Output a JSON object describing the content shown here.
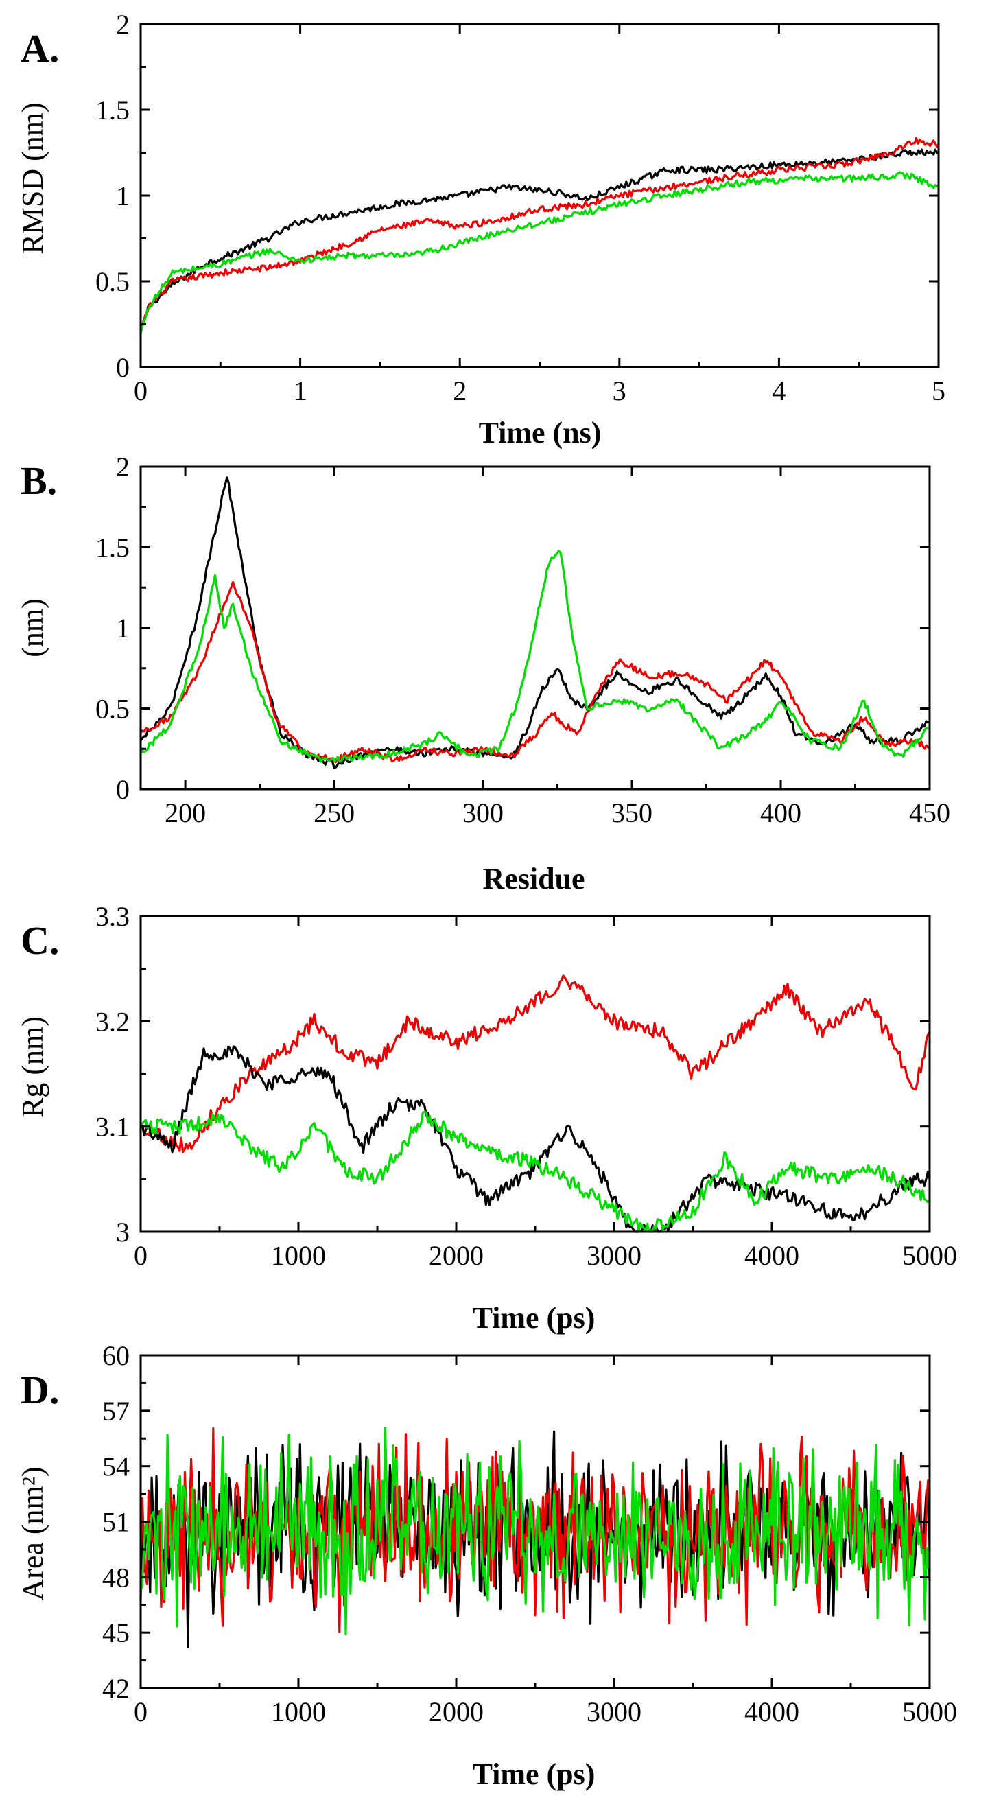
{
  "colors": {
    "black": "#000000",
    "red": "#ee0000",
    "green": "#00dd00"
  },
  "chart_data": [
    {
      "type": "line",
      "panel_label": "A.",
      "xlabel": "Time (ns)",
      "ylabel": "RMSD (nm)",
      "xlim": [
        0,
        5
      ],
      "ylim": [
        0,
        2
      ],
      "xticks": [
        0,
        1,
        2,
        3,
        4,
        5
      ],
      "yticks": [
        0,
        0.5,
        1,
        1.5,
        2
      ],
      "xtick_labels": [
        "0",
        "1",
        "2",
        "3",
        "4",
        "5"
      ],
      "ytick_labels": [
        "0",
        "0.5",
        "1",
        "1.5",
        "2"
      ],
      "grid": false,
      "noise": 0.018,
      "series": [
        {
          "color": "black",
          "x": [
            0,
            0.05,
            0.2,
            0.4,
            0.6,
            0.8,
            1.0,
            1.3,
            1.6,
            2.0,
            2.3,
            2.6,
            2.8,
            3.0,
            3.3,
            3.6,
            4.0,
            4.4,
            4.8,
            5.0
          ],
          "y": [
            0.2,
            0.35,
            0.48,
            0.6,
            0.67,
            0.75,
            0.85,
            0.9,
            0.95,
            1.0,
            1.05,
            1.02,
            0.98,
            1.05,
            1.15,
            1.15,
            1.18,
            1.2,
            1.25,
            1.25
          ]
        },
        {
          "color": "red",
          "x": [
            0,
            0.05,
            0.2,
            0.5,
            0.8,
            1.0,
            1.3,
            1.5,
            1.8,
            2.0,
            2.2,
            2.5,
            2.8,
            3.0,
            3.5,
            4.0,
            4.4,
            4.7,
            4.85,
            5.0
          ],
          "y": [
            0.2,
            0.35,
            0.5,
            0.55,
            0.58,
            0.62,
            0.72,
            0.8,
            0.85,
            0.82,
            0.85,
            0.92,
            0.95,
            1.0,
            1.08,
            1.15,
            1.18,
            1.25,
            1.32,
            1.3
          ]
        },
        {
          "color": "green",
          "x": [
            0,
            0.05,
            0.2,
            0.5,
            0.8,
            1.0,
            1.3,
            1.7,
            2.0,
            2.3,
            2.7,
            3.0,
            3.4,
            3.8,
            4.2,
            4.5,
            4.8,
            5.0
          ],
          "y": [
            0.2,
            0.35,
            0.55,
            0.6,
            0.68,
            0.62,
            0.65,
            0.65,
            0.72,
            0.8,
            0.88,
            0.95,
            1.02,
            1.08,
            1.1,
            1.1,
            1.12,
            1.05
          ]
        }
      ]
    },
    {
      "type": "line",
      "panel_label": "B.",
      "xlabel": "Residue",
      "ylabel": "(nm)",
      "xlim": [
        185,
        450
      ],
      "ylim": [
        0,
        2
      ],
      "xticks": [
        200,
        250,
        300,
        350,
        400,
        450
      ],
      "yticks": [
        0,
        0.5,
        1,
        1.5,
        2
      ],
      "xtick_labels": [
        "200",
        "250",
        "300",
        "350",
        "400",
        "450"
      ],
      "ytick_labels": [
        "0",
        "0.5",
        "1",
        "1.5",
        "2"
      ],
      "grid": false,
      "noise": 0.02,
      "series": [
        {
          "color": "black",
          "x": [
            185,
            195,
            203,
            210,
            214,
            218,
            225,
            232,
            240,
            250,
            260,
            270,
            280,
            290,
            300,
            310,
            315,
            320,
            325,
            330,
            335,
            345,
            355,
            365,
            370,
            380,
            385,
            395,
            400,
            405,
            415,
            425,
            430,
            440,
            450
          ],
          "y": [
            0.3,
            0.5,
            1.0,
            1.6,
            1.95,
            1.5,
            0.8,
            0.35,
            0.22,
            0.15,
            0.22,
            0.25,
            0.22,
            0.25,
            0.22,
            0.2,
            0.38,
            0.62,
            0.75,
            0.55,
            0.5,
            0.72,
            0.6,
            0.68,
            0.6,
            0.45,
            0.52,
            0.7,
            0.58,
            0.35,
            0.28,
            0.4,
            0.3,
            0.3,
            0.42
          ]
        },
        {
          "color": "red",
          "x": [
            185,
            195,
            205,
            212,
            216,
            222,
            230,
            240,
            250,
            260,
            270,
            280,
            290,
            300,
            310,
            318,
            323,
            327,
            332,
            338,
            346,
            355,
            368,
            375,
            382,
            390,
            395,
            400,
            410,
            420,
            428,
            435,
            445,
            450
          ],
          "y": [
            0.35,
            0.45,
            0.75,
            1.1,
            1.28,
            1.0,
            0.45,
            0.22,
            0.18,
            0.25,
            0.18,
            0.24,
            0.22,
            0.25,
            0.2,
            0.35,
            0.48,
            0.4,
            0.35,
            0.6,
            0.8,
            0.7,
            0.72,
            0.65,
            0.55,
            0.7,
            0.8,
            0.7,
            0.35,
            0.3,
            0.45,
            0.28,
            0.3,
            0.25
          ]
        },
        {
          "color": "green",
          "x": [
            185,
            195,
            205,
            210,
            213,
            216,
            222,
            232,
            245,
            260,
            270,
            280,
            286,
            295,
            305,
            312,
            318,
            322,
            326,
            330,
            335,
            345,
            355,
            365,
            370,
            380,
            385,
            395,
            400,
            410,
            420,
            428,
            433,
            440,
            450
          ],
          "y": [
            0.22,
            0.4,
            0.9,
            1.32,
            1.0,
            1.15,
            0.75,
            0.3,
            0.18,
            0.2,
            0.22,
            0.28,
            0.35,
            0.2,
            0.25,
            0.55,
            1.05,
            1.4,
            1.47,
            0.95,
            0.5,
            0.55,
            0.5,
            0.55,
            0.45,
            0.25,
            0.3,
            0.42,
            0.55,
            0.3,
            0.25,
            0.55,
            0.3,
            0.2,
            0.38
          ]
        }
      ]
    },
    {
      "type": "line",
      "panel_label": "C.",
      "xlabel": "Time (ps)",
      "ylabel": "Rg (nm)",
      "xlim": [
        0,
        5000
      ],
      "ylim": [
        3,
        3.3
      ],
      "xticks": [
        0,
        1000,
        2000,
        3000,
        4000,
        5000
      ],
      "yticks": [
        3,
        3.1,
        3.2,
        3.3
      ],
      "xtick_labels": [
        "0",
        "1000",
        "2000",
        "3000",
        "4000",
        "5000"
      ],
      "ytick_labels": [
        "3",
        "3.1",
        "3.2",
        "3.3"
      ],
      "grid": false,
      "noise": 0.007,
      "series": [
        {
          "color": "red",
          "x": [
            0,
            300,
            500,
            700,
            900,
            1100,
            1300,
            1500,
            1700,
            2000,
            2300,
            2700,
            3000,
            3300,
            3500,
            3800,
            4100,
            4300,
            4600,
            4800,
            4900,
            5000
          ],
          "y": [
            3.1,
            3.08,
            3.12,
            3.15,
            3.17,
            3.2,
            3.17,
            3.16,
            3.2,
            3.18,
            3.2,
            3.24,
            3.2,
            3.19,
            3.15,
            3.19,
            3.23,
            3.19,
            3.22,
            3.17,
            3.13,
            3.19
          ]
        },
        {
          "color": "black",
          "x": [
            0,
            200,
            400,
            600,
            800,
            1000,
            1200,
            1400,
            1600,
            1800,
            2000,
            2200,
            2500,
            2700,
            2900,
            3100,
            3300,
            3600,
            3900,
            4200,
            4500,
            4700,
            4900,
            5000
          ],
          "y": [
            3.1,
            3.08,
            3.17,
            3.17,
            3.14,
            3.15,
            3.15,
            3.08,
            3.12,
            3.12,
            3.06,
            3.03,
            3.06,
            3.1,
            3.06,
            3.0,
            3.0,
            3.05,
            3.04,
            3.03,
            3.01,
            3.03,
            3.05,
            3.05
          ]
        },
        {
          "color": "green",
          "x": [
            0,
            300,
            500,
            700,
            900,
            1100,
            1300,
            1500,
            1800,
            2100,
            2400,
            2700,
            3000,
            3200,
            3500,
            3700,
            3900,
            4100,
            4400,
            4600,
            4800,
            5000
          ],
          "y": [
            3.1,
            3.1,
            3.11,
            3.08,
            3.06,
            3.1,
            3.06,
            3.05,
            3.11,
            3.08,
            3.07,
            3.05,
            3.02,
            3.0,
            3.02,
            3.07,
            3.03,
            3.06,
            3.05,
            3.06,
            3.05,
            3.03
          ]
        }
      ]
    },
    {
      "type": "line",
      "panel_label": "D.",
      "xlabel": "Time (ps)",
      "ylabel": "Area (nm²)",
      "xlim": [
        0,
        5000
      ],
      "ylim": [
        42,
        60
      ],
      "xticks": [
        0,
        1000,
        2000,
        3000,
        4000,
        5000
      ],
      "yticks": [
        42,
        45,
        48,
        51,
        54,
        57,
        60
      ],
      "xtick_labels": [
        "0",
        "1000",
        "2000",
        "3000",
        "4000",
        "5000"
      ],
      "ytick_labels": [
        "42",
        "45",
        "48",
        "51",
        "54",
        "57",
        "60"
      ],
      "grid": false,
      "fluctuation": {
        "points": 500,
        "mean": 50.5,
        "amplitude": 3.2
      },
      "series": [
        {
          "color": "black",
          "seed": 11
        },
        {
          "color": "red",
          "seed": 23
        },
        {
          "color": "green",
          "seed": 37
        }
      ]
    }
  ]
}
